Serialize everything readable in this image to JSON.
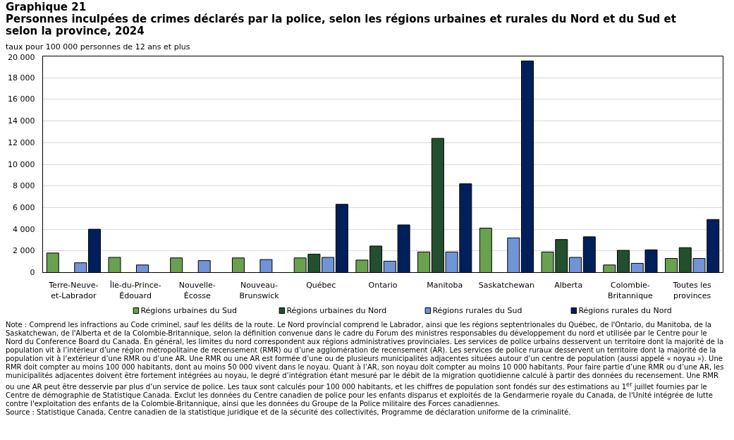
{
  "chart_data": {
    "type": "bar",
    "title": "Graphique 21",
    "subtitle": "Personnes inculpées de crimes déclarés par la police, selon les régions urbaines et rurales du Nord et du Sud et selon la province, 2024",
    "ylabel": "taux pour 100 000 personnes de 12 ans et plus",
    "categories": [
      "Terre-Neuve-et-Labrador",
      "Île-du-Prince-Édouard",
      "Nouvelle-Écosse",
      "Nouveau-Brunswick",
      "Québec",
      "Ontario",
      "Manitoba",
      "Saskatchewan",
      "Alberta",
      "Colombie-Britannique",
      "Toutes les provinces"
    ],
    "series": [
      {
        "name": "Régions urbaines du Sud",
        "color": "#6aa151",
        "values": [
          1800,
          1400,
          1350,
          1350,
          1350,
          1150,
          1900,
          4100,
          1900,
          700,
          1300
        ]
      },
      {
        "name": "Régions urbaines du Nord",
        "color": "#234f2e",
        "values": [
          null,
          null,
          null,
          null,
          1700,
          2450,
          12400,
          null,
          3050,
          2050,
          2300
        ]
      },
      {
        "name": "Régions rurales du Sud",
        "color": "#7094d6",
        "values": [
          900,
          700,
          1100,
          1200,
          1400,
          1050,
          1900,
          3200,
          1400,
          850,
          1300
        ]
      },
      {
        "name": "Régions rurales du Nord",
        "color": "#00205b",
        "values": [
          4000,
          null,
          null,
          null,
          6300,
          4400,
          8200,
          19550,
          3300,
          2100,
          4900
        ]
      }
    ],
    "ylim": [
      0,
      20000
    ],
    "yticks": [
      0,
      {
        "value": 2000,
        "label": "2 000"
      },
      {
        "value": 4000,
        "label": "4 000"
      },
      {
        "value": 6000,
        "label": "6 000"
      },
      {
        "value": 8000,
        "label": "8 000"
      },
      {
        "value": 10000,
        "label": "10 000"
      },
      {
        "value": 12000,
        "label": "12 000"
      },
      {
        "value": 14000,
        "label": "14 000"
      },
      {
        "value": 16000,
        "label": "16 000"
      },
      {
        "value": 18000,
        "label": "18 000"
      },
      {
        "value": 20000,
        "label": "20 000"
      }
    ],
    "grid": "y",
    "legend": "bottom",
    "annotations": [
      "Note : Comprend les infractions au Code criminel, sauf les délits de la route. Le Nord provincial comprend le Labrador, ainsi que les régions septentrionales du Québec, de l'Ontario, du Manitoba, de la Saskatchewan, de l'Alberta et de la Colombie-Britannique, selon la définition convenue dans le cadre du Forum des ministres responsables du développement du nord et utilisée par le Centre pour le Nord du Conference Board du Canada. En général, les limites du nord correspondent aux régions administratives provinciales. Les services de police urbains desservent un territoire dont la majorité de la population vit à l’intérieur d’une région métropolitaine de recensement (RMR) ou d’une agglomération de recensement (AR). Les services de police ruraux desservent un territoire dont la majorité de la population vit à l’extérieur d’une RMR ou d’une AR. Une RMR ou une AR est formée d’une ou de plusieurs municipalités adjacentes situées autour d’un centre de population (aussi appelé « noyau »). Une RMR doit compter au moins 100 000 habitants, dont au moins 50 000 vivent dans le noyau. Quant à l’AR, son noyau doit compter au moins 10 000 habitants. Pour faire partie d’une RMR ou d’une AR, les municipalités adjacentes doivent être fortement intégrées au noyau, le degré d’intégration étant mesuré par le débit de la migration quotidienne calculé à partir des données du recensement. Une RMR ou une AR peut être desservie par plus d’un service de police. Les taux sont calculés pour 100 000 habitants, et les chiffres de population sont fondés sur des estimations au 1$^{er}$ juillet fournies par le Centre de démographie de Statistique Canada. Exclut les données du Centre canadien de police pour les enfants disparus et exploités de la Gendarmerie royale du Canada, de l'Unité intégrée de lutte contre l'exploitation des enfants de la Colombie-Britannique, ainsi que les données du Groupe de la Police militaire des Forces canadiennes.",
      "Source : Statistique Canada, Centre canadien de la statistique juridique et de la sécurité des collectivités, Programme de déclaration uniforme de la criminalité."
    ]
  }
}
